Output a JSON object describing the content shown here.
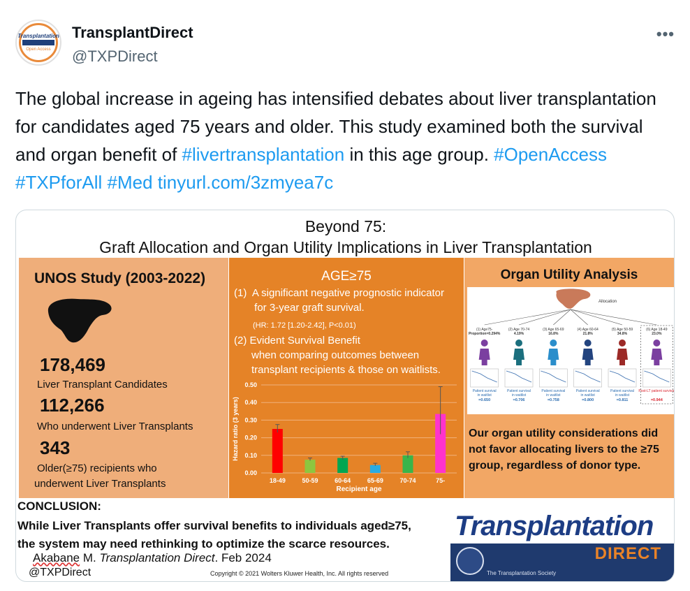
{
  "tweet": {
    "display_name": "TransplantDirect",
    "handle": "@TXPDirect",
    "more_label": "•••",
    "avatar": {
      "brand_text": "Transplantation",
      "sub_text": "Open Access"
    },
    "text_parts": [
      {
        "text": "The global increase in ageing has intensified debates about liver transplantation for candidates aged 75 years and older. This study examined both the survival and organ benefit of ",
        "link": false
      },
      {
        "text": "#livertransplantation",
        "link": true
      },
      {
        "text": " in this age group. ",
        "link": false
      },
      {
        "text": "#OpenAccess",
        "link": true
      },
      {
        "text": " ",
        "link": false
      },
      {
        "text": "#TXPforAll",
        "link": true
      },
      {
        "text": " ",
        "link": false
      },
      {
        "text": "#Med",
        "link": true
      },
      {
        "text": " ",
        "link": false
      },
      {
        "text": "tinyurl.com/3zmyea7c",
        "link": true
      }
    ]
  },
  "infographic": {
    "title_line1": "Beyond 75:",
    "title_line2": "Graft Allocation and Organ Utility Implications in Liver Transplantation",
    "left": {
      "heading": "UNOS Study (2003-2022)",
      "stats": [
        {
          "number": "178,469",
          "label_lines": [
            "Liver Transplant Candidates"
          ]
        },
        {
          "number": "112,266",
          "label_lines": [
            "Who underwent Liver Transplants"
          ]
        },
        {
          "number": "343",
          "label_lines": [
            "Older(≥75) recipients who",
            "underwent Liver Transplants"
          ]
        }
      ]
    },
    "middle": {
      "heading": "AGE≥75",
      "point1_lines": [
        "(1)  A significant negative prognostic indicator",
        "       for 3-year graft survival."
      ],
      "hr_text": "(HR: 1.72 [1.20-2.42], P<0.01)",
      "point2_lines": [
        "(2) Evident Survival Benefit",
        "      when comparing outcomes between",
        "      transplant recipients & those on waitlists."
      ]
    },
    "right": {
      "heading": "Organ Utility Analysis",
      "allocation_label": "Allocation",
      "groups": [
        {
          "label": "(1) Age75-",
          "sub": "Proportion=0.294%",
          "survival_label": "Patient survival in waitlist",
          "value": "=0.650",
          "color": "#7b3fa0"
        },
        {
          "label": "(2) Age 70-74",
          "sub": "4.19%",
          "survival_label": "Patient survival in waitlist",
          "value": "=0.706",
          "color": "#1b6f7e"
        },
        {
          "label": "(3) Age 65-69",
          "sub": "16.8%",
          "survival_label": "Patient survival in waitlist",
          "value": "=0.758",
          "color": "#2b8ecb"
        },
        {
          "label": "(4) Age 60-64",
          "sub": "21.8%",
          "survival_label": "Patient survival in waitlist",
          "value": "=0.800",
          "color": "#23447f"
        },
        {
          "label": "(5) Age 50-59",
          "sub": "34.8%",
          "survival_label": "Patient survival in waitlist",
          "value": "=0.811",
          "color": "#9c2a27"
        },
        {
          "label": "(6) Age 18-49",
          "sub": "23.0%",
          "survival_label": "Post-LT patient survival",
          "value": "=0.944",
          "color": "#7b3fa0"
        }
      ],
      "conclusion_lines": [
        "Our organ utility considerations did",
        "not favor allocating livers to the ≥75",
        "group, regardless of donor type."
      ]
    },
    "bottom": {
      "conclusion_heading": "CONCLUSION:",
      "conclusion_lines": [
        "While Liver Transplants offer survival benefits to individuals aged≥75,",
        "the system may need rethinking to optimize the scarce resources."
      ],
      "citation_author": "Akabane",
      "citation_rest": " M. ",
      "citation_journal": "Transplantation Direct",
      "citation_date": ". Feb 2024",
      "handle": "@TXPDirect",
      "copyright": "Copyright © 2021  Wolters Kluwer Health, Inc. All rights reserved",
      "logo_word": "Transplantation",
      "logo_direct": "DIRECT",
      "logo_society": "The Transplantation Society"
    }
  },
  "chart_data": {
    "type": "bar",
    "categories": [
      "18-49",
      "50-59",
      "60-64",
      "65-69",
      "70-74",
      "75-"
    ],
    "values": [
      0.25,
      0.075,
      0.085,
      0.045,
      0.1,
      0.335
    ],
    "error_high": [
      0.275,
      0.085,
      0.095,
      0.055,
      0.12,
      0.49
    ],
    "error_low": [
      0.23,
      0.07,
      0.075,
      0.04,
      0.085,
      0.22
    ],
    "colors": [
      "#ff0000",
      "#8dc63f",
      "#00a651",
      "#29abe2",
      "#39b54a",
      "#ff33cc"
    ],
    "xlabel": "Recipient age",
    "ylabel": "Hazard ratio (3 years)",
    "ylim": [
      0,
      0.5
    ],
    "yticks": [
      "0.00",
      "0.10",
      "0.20",
      "0.30",
      "0.40",
      "0.50"
    ],
    "grid": true
  }
}
